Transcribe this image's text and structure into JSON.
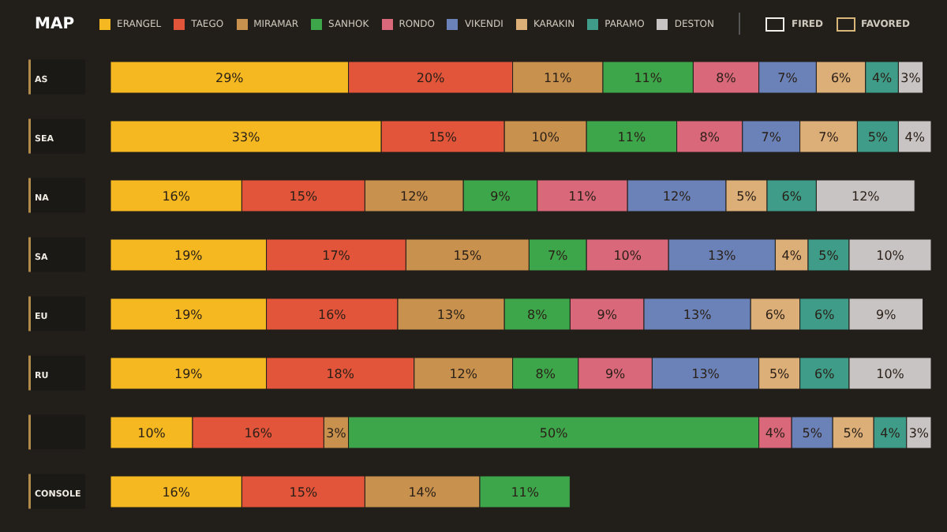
{
  "chart_data": {
    "type": "bar",
    "orientation": "horizontal",
    "stacked": true,
    "title": "MAP",
    "legend": "top",
    "annotations": [
      "FIRED",
      "FAVORED"
    ],
    "categories": [
      "AS",
      "SEA",
      "NA",
      "SA",
      "EU",
      "RU",
      null,
      "CONSOLE"
    ],
    "series": [
      {
        "name": "ERANGEL",
        "color": "#f5b820",
        "values": [
          29,
          33,
          16,
          19,
          19,
          19,
          10,
          16
        ],
        "value_labels": [
          "29%",
          "33%",
          "16%",
          "19%",
          "19%",
          "19%",
          "10%",
          "16%"
        ]
      },
      {
        "name": "TAEGO",
        "color": "#e2553a",
        "values": [
          20,
          15,
          15,
          17,
          16,
          18,
          16,
          15
        ],
        "value_labels": [
          "20%",
          "15%",
          "15%",
          "17%",
          "16%",
          "18%",
          "16%",
          "15%"
        ]
      },
      {
        "name": "MIRAMAR",
        "color": "#c8914e",
        "values": [
          11,
          10,
          12,
          15,
          13,
          12,
          3,
          14
        ],
        "value_labels": [
          "11%",
          "10%",
          "12%",
          "15%",
          "13%",
          "12%",
          "3%",
          "14%"
        ]
      },
      {
        "name": "SANHOK",
        "color": "#3ea64a",
        "values": [
          11,
          11,
          9,
          7,
          8,
          8,
          50,
          11
        ],
        "value_labels": [
          "11%",
          "11%",
          "9%",
          "7%",
          "8%",
          "8%",
          "50%",
          "11%"
        ]
      },
      {
        "name": "RONDO",
        "color": "#d9687a",
        "values": [
          8,
          8,
          11,
          10,
          9,
          9,
          4,
          null
        ],
        "value_labels": [
          "8%",
          "8%",
          "11%",
          "10%",
          "9%",
          "9%",
          "4%",
          null
        ]
      },
      {
        "name": "VIKENDI",
        "color": "#6b82b8",
        "values": [
          7,
          7,
          12,
          13,
          13,
          13,
          5,
          null
        ],
        "value_labels": [
          "7%",
          "7%",
          "12%",
          "13%",
          "13%",
          "13%",
          "5%",
          null
        ]
      },
      {
        "name": "KARAKIN",
        "color": "#dcae78",
        "values": [
          6,
          7,
          5,
          4,
          6,
          5,
          5,
          null
        ],
        "value_labels": [
          "6%",
          "7%",
          "5%",
          "4%",
          "6%",
          "5%",
          "5%",
          null
        ]
      },
      {
        "name": "PARAMO",
        "color": "#3e9c88",
        "values": [
          4,
          5,
          6,
          5,
          6,
          6,
          4,
          null
        ],
        "value_labels": [
          "4%",
          "5%",
          "6%",
          "5%",
          "6%",
          "6%",
          "4%",
          null
        ]
      },
      {
        "name": "DESTON",
        "color": "#c8c4c4",
        "values": [
          3,
          4,
          12,
          10,
          9,
          10,
          3,
          null
        ],
        "value_labels": [
          "3%",
          "4%",
          "12%",
          "10%",
          "9%",
          "10%",
          "3%",
          null
        ]
      }
    ]
  }
}
